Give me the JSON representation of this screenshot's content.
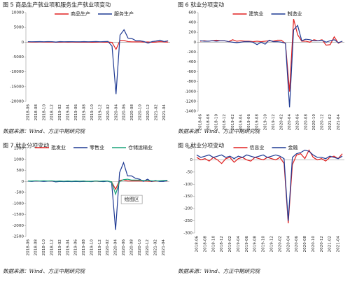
{
  "chart_data": [
    {
      "type": "line",
      "title": "图 5 商品生产就业项和服务生产就业项变动",
      "categories": [
        "2018-06",
        null,
        "2018-08",
        null,
        "2018-10",
        null,
        "2018-12",
        null,
        "2019-02",
        null,
        "2019-04",
        null,
        "2019-06",
        null,
        "2019-08",
        null,
        "2019-10",
        null,
        "2019-12",
        null,
        "2020-02",
        null,
        "2020-04",
        null,
        "2020-06",
        null,
        "2020-08",
        null,
        "2020-10",
        null,
        "2020-12",
        null,
        "2021-02",
        null,
        "2021-04",
        null
      ],
      "series": [
        {
          "name": "商品生产",
          "color": "#e02020",
          "values": [
            60,
            40,
            50,
            60,
            50,
            70,
            30,
            10,
            20,
            30,
            20,
            30,
            10,
            20,
            0,
            10,
            -10,
            20,
            30,
            20,
            50,
            -60,
            -2400,
            600,
            600,
            200,
            100,
            100,
            100,
            50,
            80,
            -20,
            50,
            200,
            70,
            40
          ]
        },
        {
          "name": "服务生产",
          "color": "#1f3a93",
          "values": [
            180,
            150,
            170,
            200,
            150,
            190,
            180,
            50,
            200,
            150,
            160,
            180,
            150,
            130,
            200,
            140,
            180,
            220,
            150,
            200,
            250,
            -1300,
            -17500,
            2400,
            4200,
            1400,
            1200,
            500,
            500,
            200,
            -300,
            200,
            400,
            700,
            200,
            500
          ]
        }
      ],
      "ylim": [
        -20000,
        10000
      ],
      "yticks": [
        10000,
        5000,
        0,
        -5000,
        -10000,
        -15000,
        -20000
      ],
      "source": "数据来源：Wind、方正中期研究院"
    },
    {
      "type": "line",
      "title": "图 6 就业分项变动",
      "categories": [
        "2018-06",
        null,
        "2018-08",
        null,
        "2018-10",
        null,
        "2018-12",
        null,
        "2019-02",
        null,
        "2019-04",
        null,
        "2019-06",
        null,
        "2019-08",
        null,
        "2019-10",
        null,
        "2019-12",
        null,
        "2020-02",
        null,
        "2020-04",
        null,
        "2020-06",
        null,
        "2020-08",
        null,
        "2020-10",
        null,
        "2020-12",
        null,
        "2021-02",
        null,
        "2021-04",
        null
      ],
      "series": [
        {
          "name": "建筑业",
          "color": "#e02020",
          "values": [
            20,
            30,
            20,
            30,
            40,
            30,
            30,
            10,
            50,
            20,
            30,
            20,
            20,
            10,
            20,
            10,
            20,
            30,
            20,
            40,
            40,
            -30,
            -1000,
            470,
            150,
            20,
            20,
            0,
            50,
            30,
            50,
            -60,
            -50,
            110,
            -20,
            20
          ]
        },
        {
          "name": "制造业",
          "color": "#1f3a93",
          "values": [
            30,
            20,
            20,
            30,
            20,
            30,
            30,
            10,
            0,
            -10,
            0,
            10,
            10,
            0,
            -50,
            0,
            -40,
            40,
            10,
            10,
            0,
            -20,
            -1320,
            250,
            340,
            30,
            60,
            50,
            30,
            30,
            40,
            0,
            30,
            50,
            -10,
            20
          ]
        }
      ],
      "ylim": [
        -1400,
        600
      ],
      "yticks": [
        600,
        400,
        200,
        0,
        -200,
        -400,
        -600,
        -800,
        -1000,
        -1200,
        -1400
      ],
      "source": "数据来源：Wind、方正中期研究院"
    },
    {
      "type": "line",
      "title": "图 7 就业分项变动",
      "categories": [
        "2018-06",
        null,
        "2018-08",
        null,
        "2018-10",
        null,
        "2018-12",
        null,
        "2019-02",
        null,
        "2019-04",
        null,
        "2019-06",
        null,
        "2019-08",
        null,
        "2019-10",
        null,
        "2019-12",
        null,
        "2020-02",
        null,
        "2020-04",
        null,
        "2020-06",
        null,
        "2020-08",
        null,
        "2020-10",
        null,
        "2020-12",
        null,
        "2021-02",
        null,
        "2021-04",
        null
      ],
      "series": [
        {
          "name": "批发业",
          "color": "#e02020",
          "values": [
            10,
            20,
            10,
            10,
            20,
            10,
            10,
            0,
            10,
            0,
            10,
            0,
            0,
            10,
            0,
            10,
            0,
            10,
            0,
            10,
            10,
            -20,
            -360,
            50,
            70,
            20,
            20,
            20,
            20,
            10,
            10,
            0,
            10,
            20,
            10,
            20
          ]
        },
        {
          "name": "零售业",
          "color": "#1f3a93",
          "values": [
            10,
            0,
            20,
            10,
            0,
            10,
            20,
            -20,
            0,
            -10,
            0,
            -10,
            0,
            -10,
            0,
            0,
            -10,
            20,
            0,
            -10,
            10,
            -40,
            -2200,
            400,
            850,
            250,
            250,
            140,
            100,
            0,
            100,
            0,
            40,
            0,
            0,
            30
          ]
        },
        {
          "name": "仓储运输业",
          "color": "#1aa37a",
          "values": [
            20,
            20,
            30,
            20,
            30,
            20,
            30,
            10,
            20,
            10,
            20,
            10,
            20,
            10,
            20,
            0,
            10,
            20,
            10,
            20,
            20,
            -20,
            -580,
            -10,
            80,
            100,
            60,
            60,
            60,
            40,
            40,
            30,
            20,
            30,
            40,
            50
          ]
        }
      ],
      "ylim": [
        -2500,
        1500
      ],
      "yticks": [
        1500,
        1000,
        500,
        0,
        -500,
        -1000,
        -1500,
        -2000,
        -2500
      ],
      "annotation": "绘图区",
      "source": "数据来源：Wind、方正中期研究院"
    },
    {
      "type": "line",
      "title": "图 8 就业分项变动",
      "categories": [
        "2018-06",
        null,
        "2018-08",
        null,
        "2018-10",
        null,
        "2018-12",
        null,
        "2019-02",
        null,
        "2019-04",
        null,
        "2019-06",
        null,
        "2019-08",
        null,
        "2019-10",
        null,
        "2019-12",
        null,
        "2020-02",
        null,
        "2020-04",
        null,
        "2020-06",
        null,
        "2020-08",
        null,
        "2020-10",
        null,
        "2020-12",
        null,
        "2021-02",
        null,
        "2021-04",
        null
      ],
      "series": [
        {
          "name": "信息业",
          "color": "#e02020",
          "values": [
            10,
            0,
            5,
            -5,
            10,
            0,
            -15,
            5,
            10,
            -10,
            5,
            10,
            0,
            -5,
            10,
            5,
            0,
            10,
            5,
            0,
            10,
            -15,
            -260,
            -20,
            20,
            25,
            5,
            40,
            10,
            0,
            5,
            -5,
            10,
            15,
            5,
            25
          ]
        },
        {
          "name": "金融",
          "color": "#1f3a93",
          "values": [
            20,
            10,
            15,
            20,
            10,
            15,
            20,
            10,
            15,
            5,
            15,
            10,
            20,
            15,
            10,
            15,
            20,
            10,
            15,
            20,
            15,
            5,
            -250,
            10,
            25,
            30,
            40,
            35,
            20,
            10,
            10,
            5,
            15,
            10,
            5,
            15
          ]
        }
      ],
      "ylim": [
        -300,
        50
      ],
      "yticks": [
        50,
        0,
        -50,
        -100,
        -150,
        -200,
        -250,
        -300
      ],
      "source": "数据来源：Wind、方正中期研究院"
    }
  ]
}
